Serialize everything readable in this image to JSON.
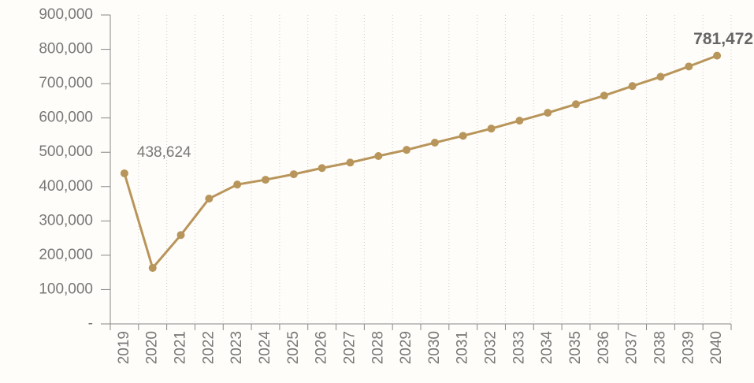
{
  "chart_data": {
    "type": "line",
    "categories": [
      "2019",
      "2020",
      "2021",
      "2022",
      "2023",
      "2024",
      "2025",
      "2026",
      "2027",
      "2028",
      "2029",
      "2030",
      "2031",
      "2032",
      "2033",
      "2034",
      "2035",
      "2036",
      "2037",
      "2038",
      "2039",
      "2040"
    ],
    "series": [
      {
        "color": "#b8955a",
        "values": [
          438624,
          163000,
          259000,
          365000,
          406000,
          420000,
          436000,
          454000,
          470000,
          489000,
          507000,
          528000,
          548000,
          569000,
          592000,
          615000,
          640000,
          665000,
          693000,
          720000,
          750000,
          781472
        ],
        "value_labels": [
          "438,624",
          null,
          null,
          null,
          null,
          null,
          null,
          null,
          null,
          null,
          null,
          null,
          null,
          null,
          null,
          null,
          null,
          null,
          null,
          null,
          null,
          "781,472"
        ]
      }
    ],
    "ylim": [
      0,
      900000
    ],
    "yticks": [
      {
        "value": 0,
        "label": "-"
      },
      {
        "value": 100000,
        "label": "100,000"
      },
      {
        "value": 200000,
        "label": "200,000"
      },
      {
        "value": 300000,
        "label": "300,000"
      },
      {
        "value": 400000,
        "label": "400,000"
      },
      {
        "value": 500000,
        "label": "500,000"
      },
      {
        "value": 600000,
        "label": "600,000"
      },
      {
        "value": 700000,
        "label": "700,000"
      },
      {
        "value": 800000,
        "label": "800,000"
      },
      {
        "value": 900000,
        "label": "900,000"
      }
    ],
    "grid": true
  }
}
